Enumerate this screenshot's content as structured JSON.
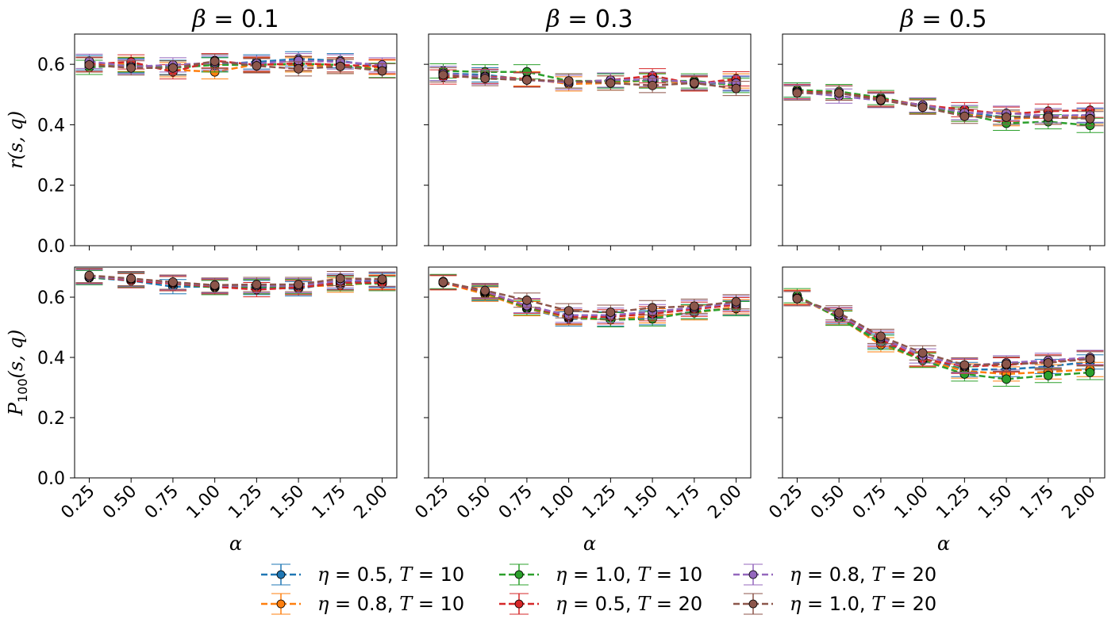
{
  "series_colors": [
    "#1f77b4",
    "#ff7f0e",
    "#2ca02c",
    "#d62728",
    "#9467bd",
    "#8c564b"
  ],
  "legend": [
    {
      "eta": "0.5",
      "T": "10"
    },
    {
      "eta": "0.8",
      "T": "10"
    },
    {
      "eta": "1.0",
      "T": "10"
    },
    {
      "eta": "0.5",
      "T": "20"
    },
    {
      "eta": "0.8",
      "T": "20"
    },
    {
      "eta": "1.0",
      "T": "20"
    }
  ],
  "chart_data": [
    {
      "type": "line",
      "title": "β = 0.1",
      "beta": "0.1",
      "ylabel": "r(s, q)",
      "xlabel": "",
      "categories": [
        "0.25",
        "0.50",
        "0.75",
        "1.00",
        "1.25",
        "1.50",
        "1.75",
        "2.00"
      ],
      "ylim": [
        0,
        0.7
      ],
      "yticks": [
        "0.0",
        "0.2",
        "0.4",
        "0.6"
      ],
      "series": [
        {
          "name": "η = 0.5, T = 10",
          "values": [
            0.605,
            0.595,
            0.59,
            0.6,
            0.608,
            0.618,
            0.612,
            0.59
          ]
        },
        {
          "name": "η = 0.8, T = 10",
          "values": [
            0.598,
            0.6,
            0.582,
            0.575,
            0.6,
            0.598,
            0.593,
            0.59
          ]
        },
        {
          "name": "η = 1.0, T = 10",
          "values": [
            0.59,
            0.598,
            0.588,
            0.598,
            0.598,
            0.602,
            0.598,
            0.58
          ]
        },
        {
          "name": "η = 0.5, T = 20",
          "values": [
            0.6,
            0.608,
            0.575,
            0.612,
            0.598,
            0.603,
            0.598,
            0.593
          ]
        },
        {
          "name": "η = 0.8, T = 20",
          "values": [
            0.61,
            0.592,
            0.598,
            0.605,
            0.603,
            0.612,
            0.608,
            0.598
          ]
        },
        {
          "name": "η = 1.0, T = 20",
          "values": [
            0.598,
            0.588,
            0.588,
            0.61,
            0.595,
            0.585,
            0.593,
            0.578
          ]
        }
      ]
    },
    {
      "type": "line",
      "title": "β = 0.3",
      "beta": "0.3",
      "ylabel": "",
      "xlabel": "",
      "categories": [
        "0.25",
        "0.50",
        "0.75",
        "1.00",
        "1.25",
        "1.50",
        "1.75",
        "2.00"
      ],
      "ylim": [
        0,
        0.7
      ],
      "yticks": [
        "0.0",
        "0.2",
        "0.4",
        "0.6"
      ],
      "series": [
        {
          "name": "η = 0.5, T = 10",
          "values": [
            0.57,
            0.565,
            0.55,
            0.54,
            0.545,
            0.545,
            0.538,
            0.535
          ]
        },
        {
          "name": "η = 0.8, T = 10",
          "values": [
            0.565,
            0.56,
            0.552,
            0.535,
            0.538,
            0.548,
            0.535,
            0.545
          ]
        },
        {
          "name": "η = 1.0, T = 10",
          "values": [
            0.578,
            0.575,
            0.575,
            0.545,
            0.545,
            0.545,
            0.545,
            0.53
          ]
        },
        {
          "name": "η = 0.5, T = 20",
          "values": [
            0.558,
            0.56,
            0.55,
            0.54,
            0.548,
            0.562,
            0.535,
            0.552
          ]
        },
        {
          "name": "η = 0.8, T = 20",
          "values": [
            0.57,
            0.558,
            0.548,
            0.54,
            0.548,
            0.55,
            0.54,
            0.538
          ]
        },
        {
          "name": "η = 1.0, T = 20",
          "values": [
            0.565,
            0.553,
            0.548,
            0.545,
            0.538,
            0.53,
            0.538,
            0.52
          ]
        }
      ]
    },
    {
      "type": "line",
      "title": "β = 0.5",
      "beta": "0.5",
      "ylabel": "",
      "xlabel": "",
      "categories": [
        "0.25",
        "0.50",
        "0.75",
        "1.00",
        "1.25",
        "1.50",
        "1.75",
        "2.00"
      ],
      "ylim": [
        0,
        0.7
      ],
      "yticks": [
        "0.0",
        "0.2",
        "0.4",
        "0.6"
      ],
      "series": [
        {
          "name": "η = 0.5, T = 10",
          "values": [
            0.515,
            0.505,
            0.485,
            0.465,
            0.44,
            0.425,
            0.43,
            0.43
          ]
        },
        {
          "name": "η = 0.8, T = 10",
          "values": [
            0.51,
            0.505,
            0.485,
            0.46,
            0.435,
            0.42,
            0.425,
            0.425
          ]
        },
        {
          "name": "η = 1.0, T = 10",
          "values": [
            0.515,
            0.51,
            0.49,
            0.462,
            0.435,
            0.405,
            0.41,
            0.398
          ]
        },
        {
          "name": "η = 0.5, T = 20",
          "values": [
            0.51,
            0.505,
            0.485,
            0.465,
            0.45,
            0.435,
            0.445,
            0.448
          ]
        },
        {
          "name": "η = 0.8, T = 20",
          "values": [
            0.508,
            0.495,
            0.48,
            0.465,
            0.44,
            0.438,
            0.43,
            0.432
          ]
        },
        {
          "name": "η = 1.0, T = 20",
          "values": [
            0.505,
            0.505,
            0.482,
            0.458,
            0.428,
            0.425,
            0.425,
            0.42
          ]
        }
      ]
    },
    {
      "type": "line",
      "title": "",
      "beta": "0.1",
      "ylabel": "P100(s, q)",
      "xlabel": "α",
      "categories": [
        "0.25",
        "0.50",
        "0.75",
        "1.00",
        "1.25",
        "1.50",
        "1.75",
        "2.00"
      ],
      "ylim": [
        0,
        0.7
      ],
      "yticks": [
        "0.0",
        "0.2",
        "0.4",
        "0.6"
      ],
      "series": [
        {
          "name": "η = 0.5, T = 10",
          "values": [
            0.665,
            0.655,
            0.635,
            0.635,
            0.632,
            0.628,
            0.65,
            0.655
          ]
        },
        {
          "name": "η = 0.8, T = 10",
          "values": [
            0.668,
            0.66,
            0.645,
            0.638,
            0.635,
            0.635,
            0.64,
            0.65
          ]
        },
        {
          "name": "η = 1.0, T = 10",
          "values": [
            0.665,
            0.658,
            0.645,
            0.632,
            0.635,
            0.635,
            0.645,
            0.645
          ]
        },
        {
          "name": "η = 0.5, T = 20",
          "values": [
            0.67,
            0.655,
            0.645,
            0.635,
            0.625,
            0.632,
            0.648,
            0.648
          ]
        },
        {
          "name": "η = 0.8, T = 20",
          "values": [
            0.668,
            0.66,
            0.648,
            0.638,
            0.638,
            0.638,
            0.655,
            0.658
          ]
        },
        {
          "name": "η = 1.0, T = 20",
          "values": [
            0.672,
            0.662,
            0.65,
            0.64,
            0.642,
            0.642,
            0.662,
            0.66
          ]
        }
      ]
    },
    {
      "type": "line",
      "title": "",
      "beta": "0.3",
      "ylabel": "",
      "xlabel": "α",
      "categories": [
        "0.25",
        "0.50",
        "0.75",
        "1.00",
        "1.25",
        "1.50",
        "1.75",
        "2.00"
      ],
      "ylim": [
        0,
        0.7
      ],
      "yticks": [
        "0.0",
        "0.2",
        "0.4",
        "0.6"
      ],
      "series": [
        {
          "name": "η = 0.5, T = 10",
          "values": [
            0.65,
            0.612,
            0.562,
            0.528,
            0.528,
            0.532,
            0.552,
            0.565
          ]
        },
        {
          "name": "η = 0.8, T = 10",
          "values": [
            0.648,
            0.61,
            0.562,
            0.532,
            0.525,
            0.538,
            0.548,
            0.568
          ]
        },
        {
          "name": "η = 1.0, T = 10",
          "values": [
            0.652,
            0.615,
            0.565,
            0.535,
            0.525,
            0.528,
            0.552,
            0.562
          ]
        },
        {
          "name": "η = 0.5, T = 20",
          "values": [
            0.648,
            0.618,
            0.57,
            0.535,
            0.535,
            0.545,
            0.56,
            0.575
          ]
        },
        {
          "name": "η = 0.8, T = 20",
          "values": [
            0.65,
            0.62,
            0.572,
            0.54,
            0.54,
            0.552,
            0.565,
            0.58
          ]
        },
        {
          "name": "η = 1.0, T = 20",
          "values": [
            0.65,
            0.622,
            0.59,
            0.555,
            0.55,
            0.565,
            0.57,
            0.585
          ]
        }
      ]
    },
    {
      "type": "line",
      "title": "",
      "beta": "0.5",
      "ylabel": "",
      "xlabel": "α",
      "categories": [
        "0.25",
        "0.50",
        "0.75",
        "1.00",
        "1.25",
        "1.50",
        "1.75",
        "2.00"
      ],
      "ylim": [
        0,
        0.7
      ],
      "yticks": [
        "0.0",
        "0.2",
        "0.4",
        "0.6"
      ],
      "series": [
        {
          "name": "η = 0.5, T = 10",
          "values": [
            0.6,
            0.535,
            0.455,
            0.395,
            0.36,
            0.36,
            0.37,
            0.385
          ]
        },
        {
          "name": "η = 0.8, T = 10",
          "values": [
            0.6,
            0.532,
            0.442,
            0.392,
            0.355,
            0.345,
            0.352,
            0.36
          ]
        },
        {
          "name": "η = 1.0, T = 10",
          "values": [
            0.605,
            0.53,
            0.45,
            0.39,
            0.345,
            0.328,
            0.34,
            0.35
          ]
        },
        {
          "name": "η = 0.5, T = 20",
          "values": [
            0.598,
            0.54,
            0.46,
            0.395,
            0.37,
            0.375,
            0.385,
            0.398
          ]
        },
        {
          "name": "η = 0.8, T = 20",
          "values": [
            0.595,
            0.542,
            0.465,
            0.405,
            0.372,
            0.382,
            0.39,
            0.4
          ]
        },
        {
          "name": "η = 1.0, T = 20",
          "values": [
            0.595,
            0.548,
            0.47,
            0.415,
            0.375,
            0.378,
            0.382,
            0.395
          ]
        }
      ]
    }
  ]
}
